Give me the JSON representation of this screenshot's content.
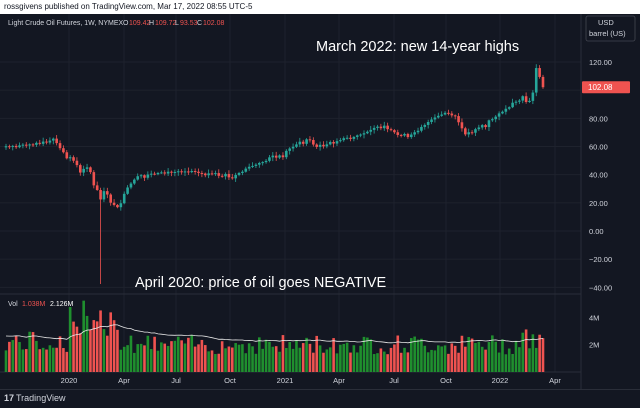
{
  "publisher_line": "rossgivens published on TradingView.com, Mar 17, 2022 08:55 UTC-5",
  "footer": {
    "logo_mark": "17",
    "brand": "TradingView"
  },
  "chart_data": {
    "type": "candlestick",
    "symbol_title": "Light Crude Oil Futures, 1W, NYMEX",
    "ohlc": {
      "o_label": "O",
      "o": "109.42",
      "h_label": "H",
      "h": "109.72",
      "l_label": "L",
      "l": "93.53",
      "c_label": "C",
      "c": "102.08"
    },
    "currency_box": {
      "line1": "USD",
      "line2": "barrel (US)"
    },
    "last_price": "102.08",
    "y_ticks": [
      "120.00",
      "100.00",
      "80.00",
      "60.00",
      "40.00",
      "20.00",
      "0.00",
      "−20.00",
      "−40.00"
    ],
    "y_range": [
      -45,
      135
    ],
    "x_ticks": [
      "2020",
      "Apr",
      "Jul",
      "Oct",
      "2021",
      "Apr",
      "Jul",
      "Oct",
      "2022",
      "Apr"
    ],
    "annotations": {
      "top": "March 2022: new 14-year highs",
      "bottom": "April 2020: price of oil goes NEGATIVE"
    },
    "volume": {
      "label": "Vol",
      "value_red": "1.038M",
      "value_white": "2.126M",
      "y_ticks": [
        "4M",
        "2M"
      ],
      "y_range_m": [
        0,
        5.5
      ]
    },
    "colors": {
      "up": "#26a69a",
      "up_vol": "#1f8f2e",
      "down": "#ef5350",
      "last_price_bg": "#ef5350",
      "background": "#131722",
      "grid": "#2a2e39"
    },
    "weekly_closes": [
      60.2,
      59.8,
      60.4,
      59.5,
      60.8,
      61.3,
      60.7,
      61.5,
      61.2,
      62.6,
      61.9,
      63.5,
      62.8,
      64.2,
      65.6,
      62.4,
      58.8,
      55.9,
      51.6,
      52.4,
      49.9,
      46.8,
      41.5,
      44.1,
      45.2,
      41.8,
      32.4,
      29.1,
      22.4,
      28.3,
      25.9,
      20.1,
      18.5,
      16.9,
      19.7,
      26.4,
      30.9,
      33.7,
      36.5,
      38.9,
      39.6,
      37.8,
      40.1,
      40.7,
      40.3,
      41.2,
      41.6,
      40.8,
      42.1,
      41.5,
      41.9,
      42.4,
      41.7,
      42.3,
      41.8,
      42.6,
      42.1,
      41.2,
      40.8,
      39.6,
      40.9,
      40.4,
      41.1,
      39.2,
      38.8,
      40.5,
      38.1,
      37.4,
      39.8,
      41.2,
      42.1,
      44.3,
      45.6,
      46.2,
      47.1,
      48.3,
      48.9,
      49.8,
      52.3,
      53.5,
      52.1,
      53.7,
      52.4,
      56.9,
      58.6,
      59.8,
      61.5,
      63.4,
      61.9,
      65.1,
      64.6,
      61.4,
      59.7,
      61.2,
      60.1,
      61.5,
      63.2,
      62.1,
      63.8,
      64.5,
      65.9,
      66.2,
      65.4,
      66.8,
      67.9,
      68.5,
      69.4,
      70.5,
      71.8,
      73.2,
      74.1,
      73.0,
      74.8,
      72.3,
      71.6,
      70.1,
      68.2,
      67.8,
      68.9,
      66.7,
      68.5,
      70.1,
      71.2,
      73.9,
      75.3,
      77.4,
      79.2,
      80.6,
      81.8,
      82.7,
      83.9,
      83.4,
      82.1,
      81.6,
      77.2,
      72.9,
      68.6,
      70.1,
      69.8,
      72.3,
      73.5,
      75.2,
      73.8,
      78.6,
      79.4,
      81.2,
      83.5,
      84.7,
      86.8,
      87.9,
      91.1,
      91.8,
      92.6,
      95.7,
      91.6,
      92.4,
      98.3,
      115.7,
      109.4,
      102.1
    ]
  }
}
